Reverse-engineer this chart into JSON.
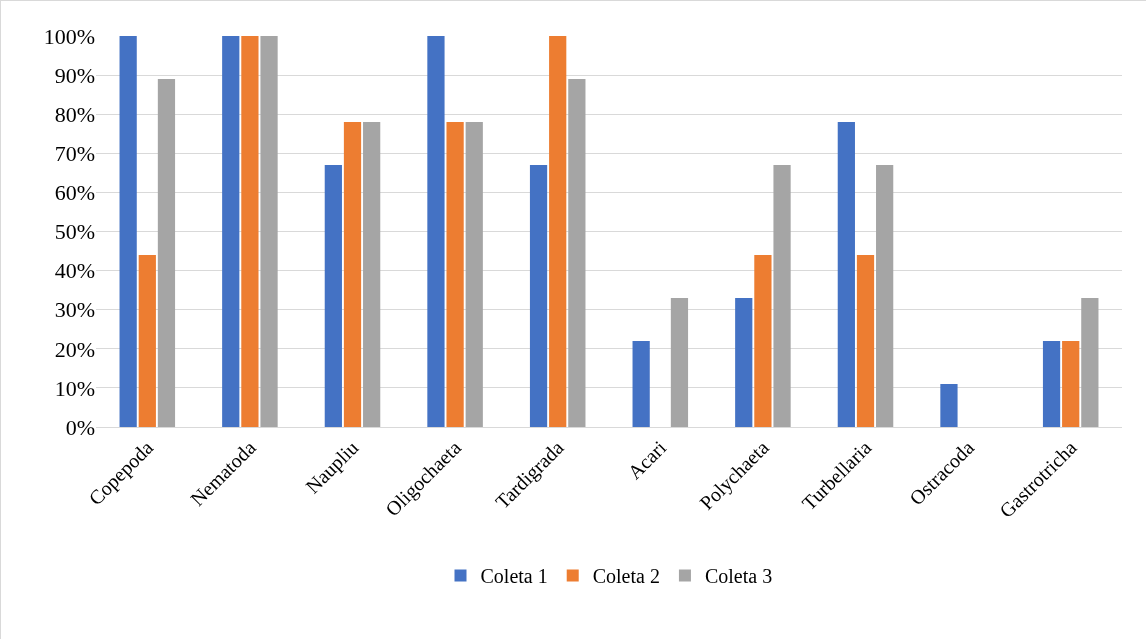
{
  "chart_data": {
    "type": "bar",
    "categories": [
      "Copepoda",
      "Nematoda",
      "Naupliu",
      "Oligochaeta",
      "Tardigrada",
      "Acari",
      "Polychaeta",
      "Turbellaria",
      "Ostracoda",
      "Gastrotricha"
    ],
    "series": [
      {
        "name": "Coleta 1",
        "color": "#4472c4",
        "values": [
          100,
          100,
          67,
          100,
          67,
          22,
          33,
          78,
          11,
          22
        ]
      },
      {
        "name": "Coleta 2",
        "color": "#ed7d31",
        "values": [
          44,
          100,
          78,
          78,
          100,
          0,
          44,
          44,
          0,
          22
        ]
      },
      {
        "name": "Coleta 3",
        "color": "#a5a5a5",
        "values": [
          89,
          100,
          78,
          78,
          89,
          33,
          67,
          67,
          0,
          33
        ]
      }
    ],
    "ylim": [
      0,
      100
    ],
    "yticks": [
      {
        "value": 0,
        "label": "0%"
      },
      {
        "value": 10,
        "label": "10%"
      },
      {
        "value": 20,
        "label": "20%"
      },
      {
        "value": 30,
        "label": "30%"
      },
      {
        "value": 40,
        "label": "40%"
      },
      {
        "value": 50,
        "label": "50%"
      },
      {
        "value": 60,
        "label": "60%"
      },
      {
        "value": 70,
        "label": "70%"
      },
      {
        "value": 80,
        "label": "80%"
      },
      {
        "value": 90,
        "label": "90%"
      },
      {
        "value": 100,
        "label": "100%"
      }
    ],
    "grid": "y",
    "legend": "bottom"
  }
}
